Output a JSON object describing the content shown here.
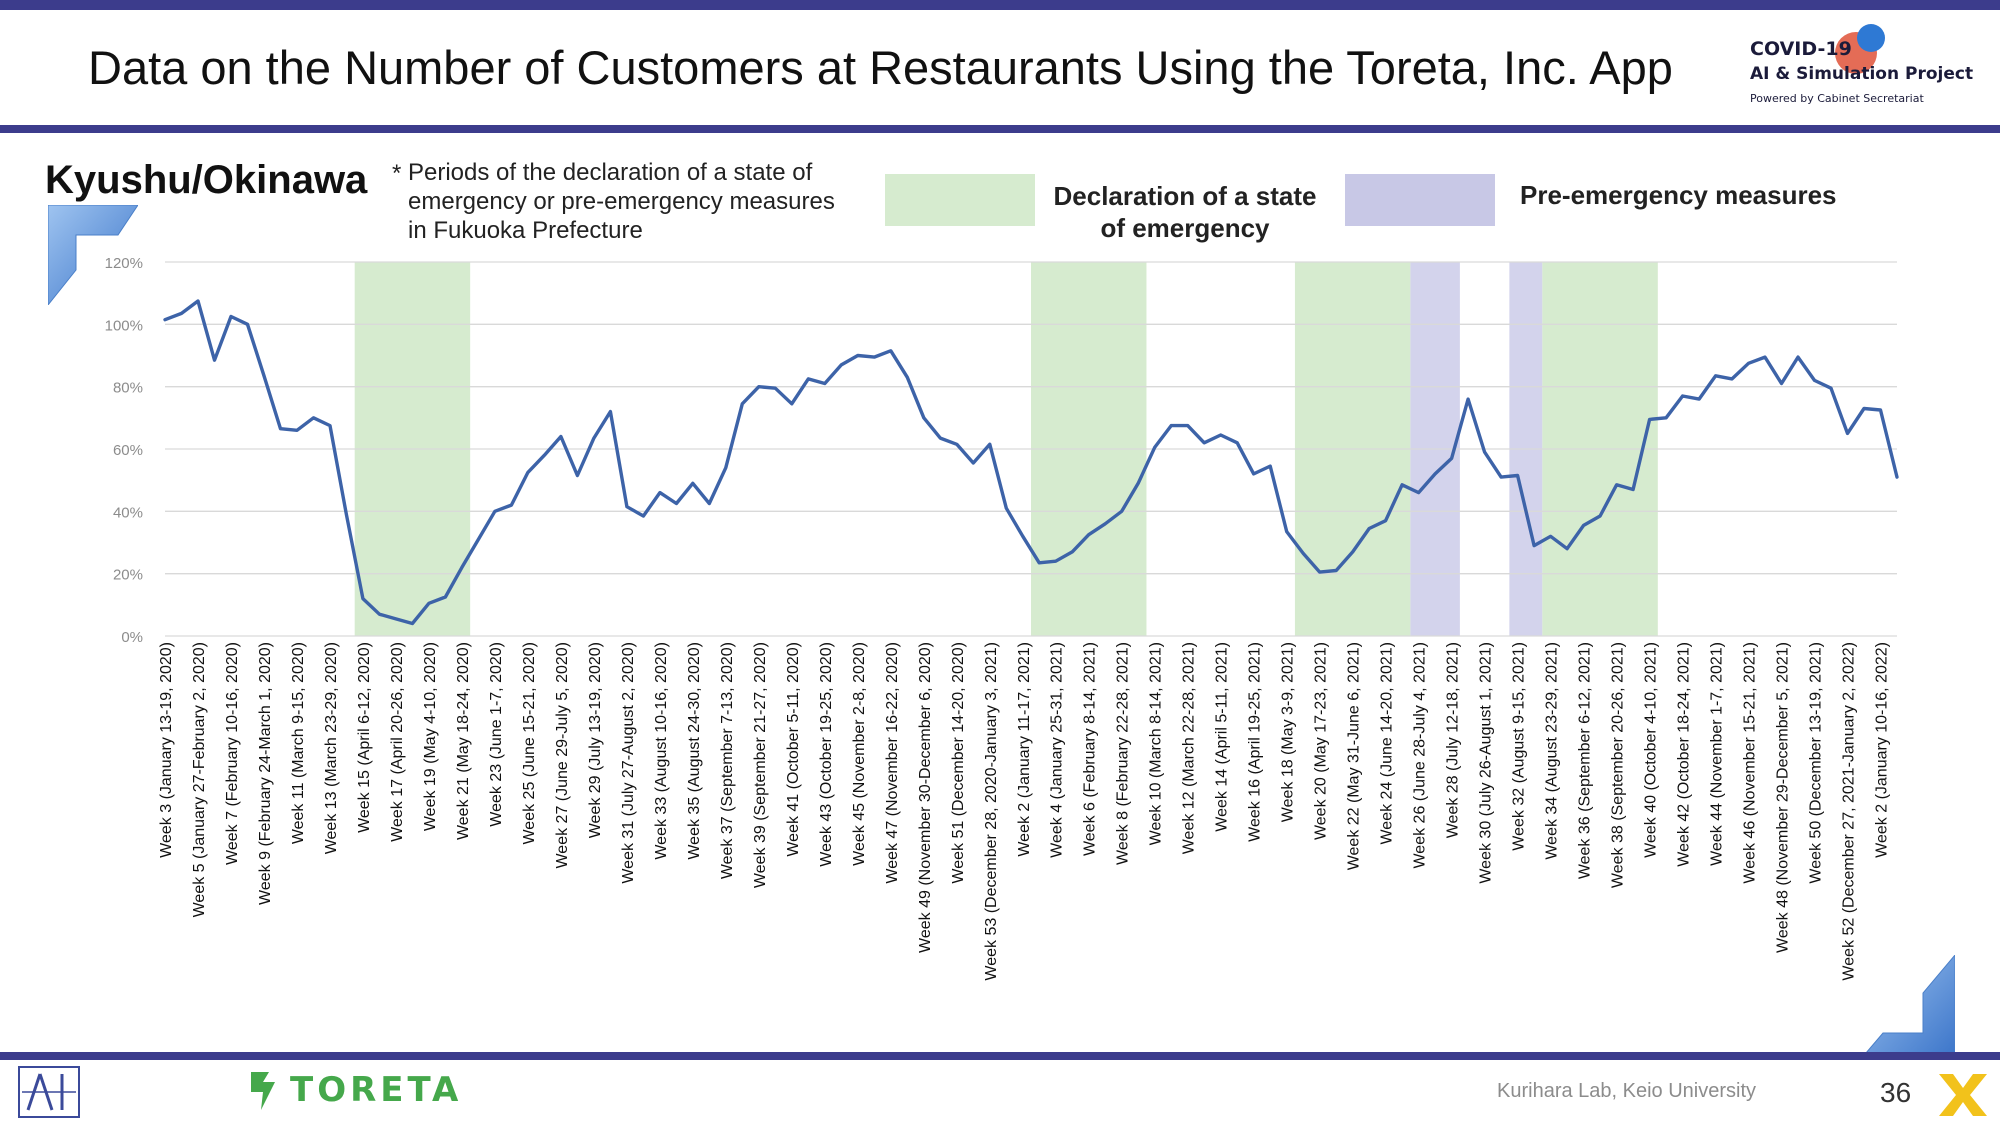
{
  "header": {
    "title": "Data on the Number of Customers at Restaurants Using the Toreta, Inc. App",
    "logo_line1": "COVID-19",
    "logo_line2": "AI & Simulation Project",
    "logo_line3": "Powered by Cabinet Secretariat"
  },
  "region": "Kyushu/Okinawa",
  "note_star": "*",
  "note": "Periods of the declaration of a state of\nemergency or pre-emergency measures\nin Fukuoka Prefecture",
  "legend": {
    "emergency": "Declaration of a state\nof emergency",
    "pre_emergency": "Pre-emergency measures"
  },
  "colors": {
    "line": "#3d63a8",
    "emergency_band": "#d6ebcf",
    "pre_emergency_band": "#d3d3ec",
    "header_bar": "#3c3c8c",
    "brand_green": "#45a84b"
  },
  "footer": {
    "brand": "TORETA",
    "lab": "Kurihara Lab, Keio University",
    "page": "36"
  },
  "chart_data": {
    "type": "line",
    "ylim": [
      0,
      120
    ],
    "yticks": [
      "0%",
      "20%",
      "40%",
      "60%",
      "80%",
      "100%",
      "120%"
    ],
    "ytick_values": [
      0,
      20,
      40,
      60,
      80,
      100,
      120
    ],
    "grid": true,
    "series": [
      {
        "values": [
          101.5,
          103.5,
          107.5,
          88.5,
          102.5,
          100,
          83.5,
          66.5,
          66,
          70,
          67.5,
          39,
          12,
          7,
          5.5,
          4,
          10.5,
          12.5,
          22,
          31,
          40,
          42,
          52.5,
          58,
          64,
          51.5,
          63.5,
          72,
          41.5,
          38.5,
          46,
          42.5,
          49,
          42.5,
          54,
          74.5,
          80,
          79.5,
          74.5,
          82.5,
          81,
          87,
          90,
          89.5,
          91.5,
          83,
          70,
          63.5,
          61.5,
          55.5,
          61.5,
          41,
          32,
          23.5,
          24,
          27,
          32.5,
          36,
          40,
          49,
          60.5,
          67.5,
          67.5,
          62,
          64.5,
          62,
          52,
          54.5,
          33.5,
          26.5,
          20.5,
          21,
          27,
          34.5,
          37,
          48.5,
          46,
          52,
          57,
          76,
          59,
          51,
          51.5,
          29,
          32,
          28,
          35.5,
          38.5,
          48.5,
          47,
          69.5,
          70,
          77,
          76,
          83.5,
          82.5,
          87.5,
          89.5,
          81,
          89.5,
          82,
          79.5,
          65,
          73,
          72.5,
          51
        ]
      }
    ],
    "x_labels": [
      "Week 3 (January 13-19, 2020)",
      "Week 5 (January 27-February 2, 2020)",
      "Week 7 (February 10-16, 2020)",
      "Week 9 (February 24-March 1, 2020)",
      "Week 11 (March 9-15, 2020)",
      "Week 13 (March 23-29, 2020)",
      "Week 15 (April 6-12, 2020)",
      "Week 17 (April 20-26, 2020)",
      "Week 19 (May 4-10, 2020)",
      "Week 21 (May 18-24, 2020)",
      "Week 23 (June 1-7, 2020)",
      "Week 25 (June 15-21, 2020)",
      "Week 27 (June 29-July 5, 2020)",
      "Week 29 (July 13-19, 2020)",
      "Week 31 (July 27-August 2, 2020)",
      "Week 33 (August 10-16, 2020)",
      "Week 35 (August 24-30, 2020)",
      "Week 37 (September 7-13, 2020)",
      "Week 39 (September 21-27, 2020)",
      "Week 41 (October 5-11, 2020)",
      "Week 43 (October 19-25, 2020)",
      "Week 45 (November 2-8, 2020)",
      "Week 47 (November 16-22, 2020)",
      "Week 49 (November 30-December 6, 2020)",
      "Week 51 (December 14-20, 2020)",
      "Week 53 (December 28, 2020-January 3, 2021)",
      "Week 2 (January 11-17, 2021)",
      "Week 4 (January 25-31, 2021)",
      "Week 6 (February 8-14, 2021)",
      "Week 8 (February 22-28, 2021)",
      "Week 10 (March 8-14, 2021)",
      "Week 12 (March 22-28, 2021)",
      "Week 14 (April 5-11, 2021)",
      "Week 16 (April 19-25, 2021)",
      "Week 18 (May 3-9, 2021)",
      "Week 20 (May 17-23, 2021)",
      "Week 22 (May 31-June 6, 2021)",
      "Week 24 (June 14-20, 2021)",
      "Week 26 (June 28-July 4, 2021)",
      "Week 28 (July 12-18, 2021)",
      "Week 30 (July 26-August 1, 2021)",
      "Week 32 (August 9-15, 2021)",
      "Week 34 (August 23-29, 2021)",
      "Week 36 (September 6-12, 2021)",
      "Week 38 (September 20-26, 2021)",
      "Week 40 (October 4-10, 2021)",
      "Week 42 (October 18-24, 2021)",
      "Week 44 (November 1-7, 2021)",
      "Week 46 (November 15-21, 2021)",
      "Week 48 (November 29-December 5, 2021)",
      "Week 50 (December 13-19, 2021)",
      "Week 52 (December 27, 2021-January 2, 2022)",
      "Week 2 (January 10-16, 2022)"
    ],
    "shaded_periods": [
      {
        "kind": "emergency",
        "from": "Week 15 (April 6-12, 2020)",
        "to": "Week 21 (May 18-24, 2020)"
      },
      {
        "kind": "emergency",
        "from": "Week 2 (January 11-17, 2021)",
        "to": "Week 8 (February 22-28, 2021)"
      },
      {
        "kind": "emergency",
        "from": "Week 18 (May 3-9, 2021)",
        "to": "Week 24 (June 14-20, 2021)"
      },
      {
        "kind": "pre_emergency",
        "from": "Week 25 (June 21-27, 2021)",
        "to": "Week 27 (July 5-11, 2021)"
      },
      {
        "kind": "pre_emergency",
        "from": "Week 31 (August 2-8, 2021)",
        "to": "Week 32 (August 9-15, 2021)"
      },
      {
        "kind": "emergency",
        "from": "Week 33 (August 16-22, 2021)",
        "to": "Week 39 (September 27-October 3, 2021)"
      }
    ]
  }
}
